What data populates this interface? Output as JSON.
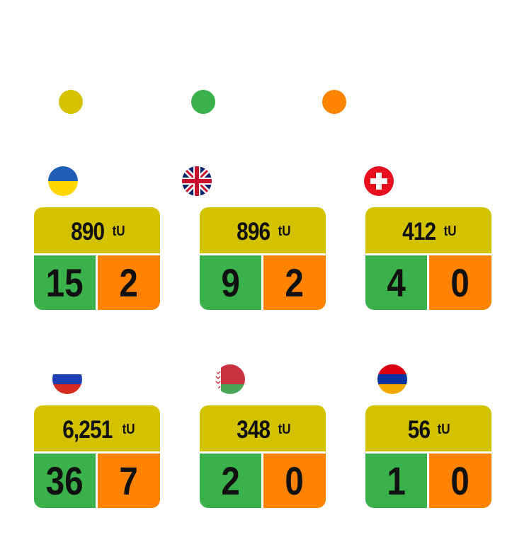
{
  "colors": {
    "yellow": "#d4c200",
    "green": "#3ab14a",
    "orange": "#ff8300"
  },
  "legend": [
    {
      "color": "#d4c200"
    },
    {
      "color": "#3ab14a"
    },
    {
      "color": "#ff8300"
    }
  ],
  "cards": [
    {
      "flag": "ukraine-flag-icon",
      "total": "890",
      "unit": "tU",
      "green": "15",
      "orange": "2"
    },
    {
      "flag": "uk-flag-icon",
      "total": "896",
      "unit": "tU",
      "green": "9",
      "orange": "2"
    },
    {
      "flag": "switzerland-flag-icon",
      "total": "412",
      "unit": "tU",
      "green": "4",
      "orange": "0"
    },
    {
      "flag": "russia-flag-icon",
      "total": "6,251",
      "unit": "tU",
      "green": "36",
      "orange": "7"
    },
    {
      "flag": "belarus-flag-icon",
      "total": "348",
      "unit": "tU",
      "green": "2",
      "orange": "0"
    },
    {
      "flag": "armenia-flag-icon",
      "total": "56",
      "unit": "tU",
      "green": "1",
      "orange": "0"
    }
  ]
}
